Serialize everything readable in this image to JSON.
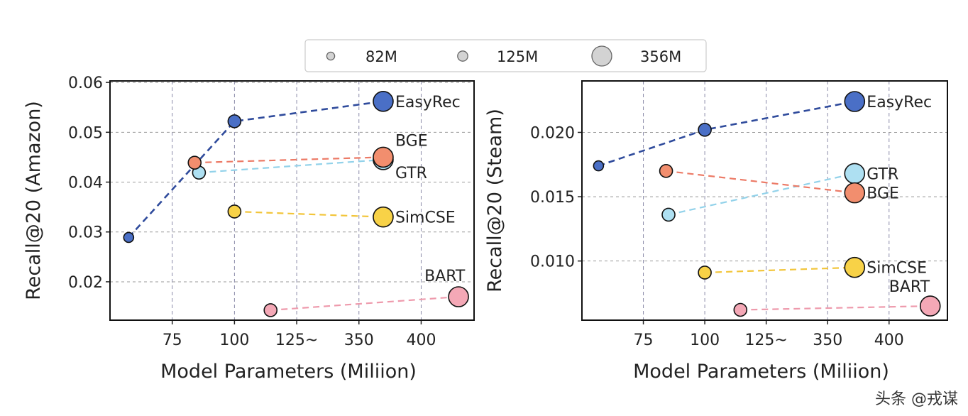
{
  "legend": {
    "title": "",
    "entries": [
      {
        "label": "82M",
        "size": "small"
      },
      {
        "label": "125M",
        "size": "medium"
      },
      {
        "label": "356M",
        "size": "large"
      }
    ]
  },
  "watermark": "头条 @戎谋",
  "colors": {
    "EasyRec": {
      "fill": "#4a6fc6",
      "line": "#2f4b9c"
    },
    "BGE": {
      "fill": "#f28e6e",
      "line": "#ec7a66"
    },
    "GTR": {
      "fill": "#aee0f2",
      "line": "#92d2ea"
    },
    "SimCSE": {
      "fill": "#f8d247",
      "line": "#f2c53a"
    },
    "BART": {
      "fill": "#f4a8b6",
      "line": "#ee9aac"
    }
  },
  "chart_data": [
    {
      "type": "scatter",
      "title": "",
      "xlabel": "Model Parameters (Miliion)",
      "ylabel": "Recall@20 (Amazon)",
      "x_note": "x values are positions on the categorical axis where tick index 0=75, 1=100, 2=125~, 3=350, 4=400",
      "xticks": [
        "75",
        "100",
        "125~",
        "350",
        "400"
      ],
      "xlim": [
        -1.0,
        4.85
      ],
      "yticks": [
        "0.02",
        "0.03",
        "0.04",
        "0.05",
        "0.06"
      ],
      "ytick_values": [
        0.02,
        0.03,
        0.04,
        0.05,
        0.06
      ],
      "ylim": [
        0.0123,
        0.0603
      ],
      "grid": true,
      "series": [
        {
          "name": "EasyRec",
          "x": [
            -0.7,
            1.0,
            3.39
          ],
          "y": [
            0.0289,
            0.0522,
            0.0562
          ],
          "sizes": [
            "small",
            "medium",
            "large"
          ]
        },
        {
          "name": "BGE",
          "x": [
            0.36,
            3.39
          ],
          "y": [
            0.0439,
            0.045
          ],
          "sizes": [
            "medium",
            "large"
          ]
        },
        {
          "name": "GTR",
          "x": [
            0.43,
            3.39
          ],
          "y": [
            0.0419,
            0.0445
          ],
          "sizes": [
            "medium",
            "large"
          ]
        },
        {
          "name": "SimCSE",
          "x": [
            1.0,
            3.39
          ],
          "y": [
            0.0341,
            0.033
          ],
          "sizes": [
            "medium",
            "large"
          ]
        },
        {
          "name": "BART",
          "x": [
            1.58,
            4.6
          ],
          "y": [
            0.0143,
            0.017
          ],
          "sizes": [
            "medium",
            "large"
          ]
        }
      ]
    },
    {
      "type": "scatter",
      "title": "",
      "xlabel": "Model Parameters (Miliion)",
      "ylabel": "Recall@20 (Steam)",
      "xticks": [
        "75",
        "100",
        "125~",
        "350",
        "400"
      ],
      "xlim": [
        -1.0,
        4.95
      ],
      "yticks": [
        "0.010",
        "0.015",
        "0.020"
      ],
      "ytick_values": [
        0.01,
        0.015,
        0.02
      ],
      "ylim": [
        0.0054,
        0.024
      ],
      "grid": true,
      "series": [
        {
          "name": "EasyRec",
          "x": [
            -0.73,
            1.0,
            3.44
          ],
          "y": [
            0.0174,
            0.0202,
            0.0224
          ],
          "sizes": [
            "small",
            "medium",
            "large"
          ]
        },
        {
          "name": "BGE",
          "x": [
            0.37,
            3.44
          ],
          "y": [
            0.017,
            0.0153
          ],
          "sizes": [
            "medium",
            "large"
          ]
        },
        {
          "name": "GTR",
          "x": [
            0.41,
            3.44
          ],
          "y": [
            0.0136,
            0.0168
          ],
          "sizes": [
            "medium",
            "large"
          ]
        },
        {
          "name": "SimCSE",
          "x": [
            1.0,
            3.44
          ],
          "y": [
            0.0091,
            0.0095
          ],
          "sizes": [
            "medium",
            "large"
          ]
        },
        {
          "name": "BART",
          "x": [
            1.58,
            4.67
          ],
          "y": [
            0.0062,
            0.0065
          ],
          "sizes": [
            "medium",
            "large"
          ]
        }
      ]
    }
  ]
}
